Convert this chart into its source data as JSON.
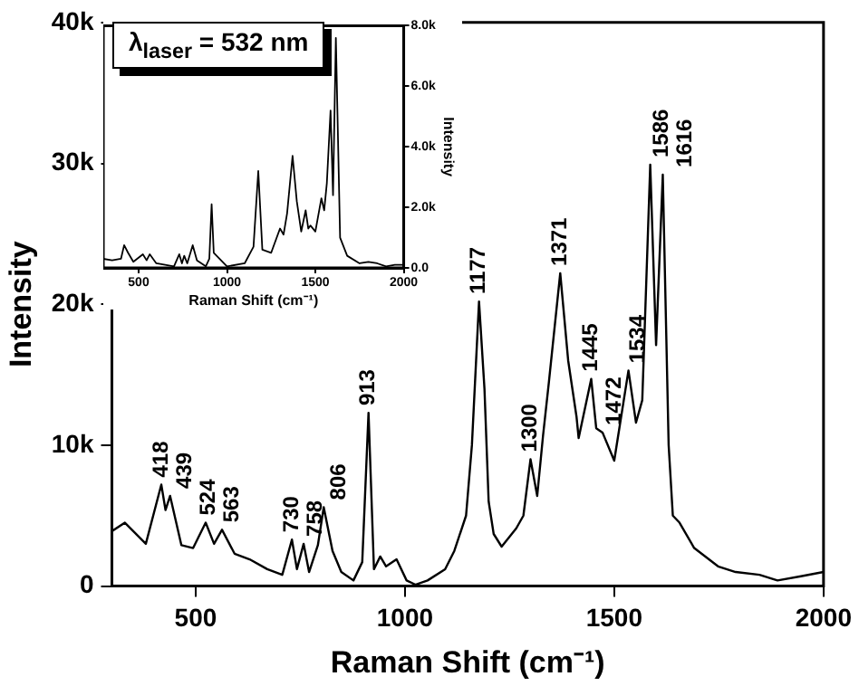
{
  "chart_data": [
    {
      "type": "line",
      "xlabel": "Raman Shift (cm⁻¹)",
      "ylabel": "Intensity",
      "xlim": [
        300,
        2000
      ],
      "xticks": [
        500,
        1000,
        1500,
        2000
      ],
      "ylim": [
        0,
        40000
      ],
      "yticks": [
        0,
        {
          "value": 10000,
          "label": "10k"
        },
        {
          "value": 20000,
          "label": "20k"
        },
        {
          "value": 30000,
          "label": "30k"
        },
        {
          "value": 40000,
          "label": "40k"
        }
      ],
      "x": [
        300,
        331,
        381,
        418,
        428,
        439,
        466,
        494,
        524,
        544,
        563,
        593,
        629,
        671,
        707,
        730,
        742,
        758,
        771,
        792,
        806,
        827,
        848,
        877,
        898,
        913,
        926,
        941,
        955,
        980,
        1004,
        1025,
        1054,
        1096,
        1118,
        1146,
        1160,
        1177,
        1190,
        1200,
        1212,
        1231,
        1266,
        1283,
        1300,
        1316,
        1330,
        1344,
        1371,
        1390,
        1410,
        1415,
        1445,
        1457,
        1472,
        1500,
        1534,
        1552,
        1567,
        1586,
        1600,
        1616,
        1630,
        1640,
        1656,
        1691,
        1748,
        1790,
        1847,
        1890,
        1946,
        2000
      ],
      "series": [
        {
          "color": "#000000",
          "values": [
            3900,
            4500,
            3000,
            7200,
            5400,
            6400,
            2900,
            2700,
            4500,
            3000,
            4000,
            2300,
            1900,
            1200,
            800,
            3300,
            1200,
            3000,
            1000,
            2900,
            5600,
            2500,
            1000,
            400,
            1700,
            12300,
            1200,
            2100,
            1400,
            1900,
            400,
            100,
            400,
            1200,
            2500,
            5000,
            10000,
            20200,
            14000,
            6000,
            3700,
            2800,
            4100,
            5000,
            9000,
            6400,
            10700,
            14500,
            22200,
            16000,
            12000,
            10500,
            14700,
            11200,
            10900,
            8900,
            15300,
            11600,
            13200,
            29900,
            17100,
            29200,
            10000,
            5000,
            4500,
            2700,
            1400,
            1000,
            800,
            400,
            700,
            1000
          ]
        }
      ],
      "annotations": [
        "λ$_{laser}$ = 532 nm",
        {
          "text": "418",
          "x": 418,
          "y": 7200
        },
        {
          "text": "439",
          "x": 439,
          "y": 6400
        },
        {
          "text": "524",
          "x": 524,
          "y": 4500
        },
        {
          "text": "563",
          "x": 563,
          "y": 4000
        },
        {
          "text": "730",
          "x": 730,
          "y": 3300
        },
        {
          "text": "758",
          "x": 758,
          "y": 3000
        },
        {
          "text": "806",
          "x": 806,
          "y": 5600
        },
        {
          "text": "913",
          "x": 913,
          "y": 12300
        },
        {
          "text": "1177",
          "x": 1177,
          "y": 20200
        },
        {
          "text": "1300",
          "x": 1300,
          "y": 9000
        },
        {
          "text": "1371",
          "x": 1371,
          "y": 22200
        },
        {
          "text": "1445",
          "x": 1445,
          "y": 14700
        },
        {
          "text": "1472",
          "x": 1472,
          "y": 10900
        },
        {
          "text": "1534",
          "x": 1534,
          "y": 15300
        },
        {
          "text": "1586",
          "x": 1586,
          "y": 29900
        },
        {
          "text": "1616",
          "x": 1616,
          "y": 29200
        }
      ]
    },
    {
      "type": "line",
      "xlabel": "Raman Shift (cm⁻¹)",
      "ylabel": "Intensity",
      "xlim": [
        300,
        2000
      ],
      "xticks": [
        500,
        1000,
        1500,
        2000
      ],
      "ylim": [
        0,
        8000
      ],
      "yticks": [
        {
          "value": 0,
          "label": "0.0"
        },
        {
          "value": 2000,
          "label": "2.0k"
        },
        {
          "value": 4000,
          "label": "4.0k"
        },
        {
          "value": 6000,
          "label": "6.0k"
        },
        {
          "value": 8000,
          "label": "8.0k"
        }
      ],
      "x": [
        300,
        350,
        400,
        418,
        440,
        470,
        524,
        545,
        563,
        600,
        700,
        730,
        745,
        758,
        775,
        806,
        830,
        880,
        900,
        913,
        925,
        950,
        1000,
        1100,
        1150,
        1177,
        1200,
        1250,
        1300,
        1320,
        1340,
        1371,
        1395,
        1420,
        1445,
        1460,
        1472,
        1500,
        1534,
        1550,
        1565,
        1586,
        1600,
        1616,
        1640,
        1680,
        1750,
        1800,
        1850,
        1900,
        1950,
        2000
      ],
      "series": [
        {
          "color": "#000000",
          "values": [
            300,
            250,
            300,
            750,
            500,
            200,
            450,
            250,
            450,
            150,
            50,
            450,
            150,
            400,
            150,
            750,
            250,
            50,
            300,
            2100,
            500,
            350,
            50,
            150,
            700,
            3200,
            600,
            500,
            1300,
            1100,
            1800,
            3700,
            2200,
            1200,
            1900,
            1300,
            1400,
            1200,
            2300,
            1900,
            2800,
            5200,
            2400,
            7600,
            1000,
            400,
            150,
            200,
            150,
            50,
            100,
            100
          ]
        }
      ]
    }
  ]
}
